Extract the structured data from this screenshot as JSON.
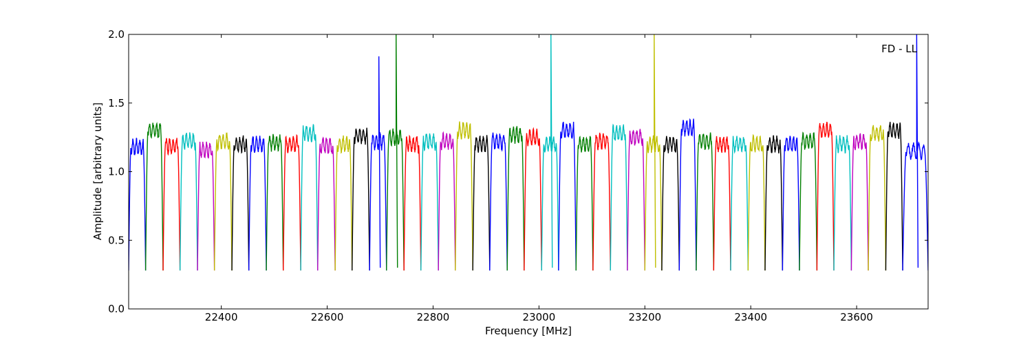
{
  "chart_data": {
    "type": "line",
    "annotation": "FD - LL",
    "xlabel": "Frequency [MHz]",
    "ylabel": "Amplitude [arbitrary units]",
    "xlim": [
      22225,
      23735
    ],
    "ylim": [
      0.0,
      2.0
    ],
    "xticks": [
      22400,
      22600,
      22800,
      23000,
      23200,
      23400,
      23600
    ],
    "xtick_labels": [
      "22400",
      "22600",
      "22800",
      "23000",
      "23200",
      "23400",
      "23600"
    ],
    "yticks": [
      0.0,
      0.5,
      1.0,
      1.5,
      2.0
    ],
    "ytick_labels": [
      "0.0",
      "0.5",
      "1.0",
      "1.5",
      "2.0"
    ],
    "grid": false,
    "legend": "none",
    "series": [
      {
        "color": "#0000ff",
        "start": 22225,
        "end": 22257,
        "level": 1.18,
        "spike": null
      },
      {
        "color": "#007f00",
        "start": 22257,
        "end": 22290,
        "level": 1.3,
        "spike": null
      },
      {
        "color": "#ff0000",
        "start": 22290,
        "end": 22322,
        "level": 1.19,
        "spike": null
      },
      {
        "color": "#00bfbf",
        "start": 22322,
        "end": 22355,
        "level": 1.22,
        "spike": null
      },
      {
        "color": "#bf00bf",
        "start": 22355,
        "end": 22387,
        "level": 1.16,
        "spike": null
      },
      {
        "color": "#bfbf00",
        "start": 22387,
        "end": 22420,
        "level": 1.22,
        "spike": null
      },
      {
        "color": "#000000",
        "start": 22420,
        "end": 22452,
        "level": 1.2,
        "spike": null
      },
      {
        "color": "#0000ff",
        "start": 22452,
        "end": 22485,
        "level": 1.2,
        "spike": null
      },
      {
        "color": "#007f00",
        "start": 22485,
        "end": 22517,
        "level": 1.21,
        "spike": null
      },
      {
        "color": "#ff0000",
        "start": 22517,
        "end": 22550,
        "level": 1.2,
        "spike": null
      },
      {
        "color": "#00bfbf",
        "start": 22550,
        "end": 22582,
        "level": 1.28,
        "spike": null
      },
      {
        "color": "#bf00bf",
        "start": 22582,
        "end": 22615,
        "level": 1.19,
        "spike": null
      },
      {
        "color": "#bfbf00",
        "start": 22615,
        "end": 22647,
        "level": 1.2,
        "spike": null
      },
      {
        "color": "#000000",
        "start": 22647,
        "end": 22680,
        "level": 1.26,
        "spike": null
      },
      {
        "color": "#0000ff",
        "start": 22680,
        "end": 22712,
        "level": 1.22,
        "spike": 1.84
      },
      {
        "color": "#007f00",
        "start": 22712,
        "end": 22745,
        "level": 1.25,
        "spike": 2.0
      },
      {
        "color": "#ff0000",
        "start": 22745,
        "end": 22777,
        "level": 1.2,
        "spike": null
      },
      {
        "color": "#00bfbf",
        "start": 22777,
        "end": 22810,
        "level": 1.22,
        "spike": null
      },
      {
        "color": "#bf00bf",
        "start": 22810,
        "end": 22842,
        "level": 1.22,
        "spike": null
      },
      {
        "color": "#bfbf00",
        "start": 22842,
        "end": 22875,
        "level": 1.3,
        "spike": null
      },
      {
        "color": "#000000",
        "start": 22875,
        "end": 22907,
        "level": 1.2,
        "spike": null
      },
      {
        "color": "#0000ff",
        "start": 22907,
        "end": 22940,
        "level": 1.22,
        "spike": null
      },
      {
        "color": "#007f00",
        "start": 22940,
        "end": 22972,
        "level": 1.27,
        "spike": null
      },
      {
        "color": "#ff0000",
        "start": 22972,
        "end": 23005,
        "level": 1.25,
        "spike": null
      },
      {
        "color": "#00bfbf",
        "start": 23005,
        "end": 23037,
        "level": 1.2,
        "spike": 2.0
      },
      {
        "color": "#0000ff",
        "start": 23037,
        "end": 23070,
        "level": 1.3,
        "spike": null
      },
      {
        "color": "#007f00",
        "start": 23070,
        "end": 23102,
        "level": 1.2,
        "spike": null
      },
      {
        "color": "#ff0000",
        "start": 23102,
        "end": 23135,
        "level": 1.22,
        "spike": null
      },
      {
        "color": "#00bfbf",
        "start": 23135,
        "end": 23167,
        "level": 1.28,
        "spike": null
      },
      {
        "color": "#bf00bf",
        "start": 23167,
        "end": 23200,
        "level": 1.25,
        "spike": null
      },
      {
        "color": "#bfbf00",
        "start": 23200,
        "end": 23232,
        "level": 1.2,
        "spike": 2.0
      },
      {
        "color": "#000000",
        "start": 23232,
        "end": 23265,
        "level": 1.2,
        "spike": null
      },
      {
        "color": "#0000ff",
        "start": 23265,
        "end": 23297,
        "level": 1.32,
        "spike": null
      },
      {
        "color": "#007f00",
        "start": 23297,
        "end": 23330,
        "level": 1.22,
        "spike": null
      },
      {
        "color": "#ff0000",
        "start": 23330,
        "end": 23362,
        "level": 1.2,
        "spike": null
      },
      {
        "color": "#00bfbf",
        "start": 23362,
        "end": 23395,
        "level": 1.2,
        "spike": null
      },
      {
        "color": "#bfbf00",
        "start": 23395,
        "end": 23427,
        "level": 1.2,
        "spike": null
      },
      {
        "color": "#000000",
        "start": 23427,
        "end": 23460,
        "level": 1.2,
        "spike": null
      },
      {
        "color": "#0000ff",
        "start": 23460,
        "end": 23492,
        "level": 1.2,
        "spike": null
      },
      {
        "color": "#007f00",
        "start": 23492,
        "end": 23525,
        "level": 1.22,
        "spike": null
      },
      {
        "color": "#ff0000",
        "start": 23525,
        "end": 23557,
        "level": 1.3,
        "spike": null
      },
      {
        "color": "#00bfbf",
        "start": 23557,
        "end": 23590,
        "level": 1.2,
        "spike": null
      },
      {
        "color": "#bf00bf",
        "start": 23590,
        "end": 23622,
        "level": 1.22,
        "spike": null
      },
      {
        "color": "#bfbf00",
        "start": 23622,
        "end": 23655,
        "level": 1.28,
        "spike": null
      },
      {
        "color": "#000000",
        "start": 23655,
        "end": 23687,
        "level": 1.3,
        "spike": null
      },
      {
        "color": "#0000ff",
        "start": 23687,
        "end": 23735,
        "level": 1.15,
        "spike": 2.0
      }
    ]
  }
}
